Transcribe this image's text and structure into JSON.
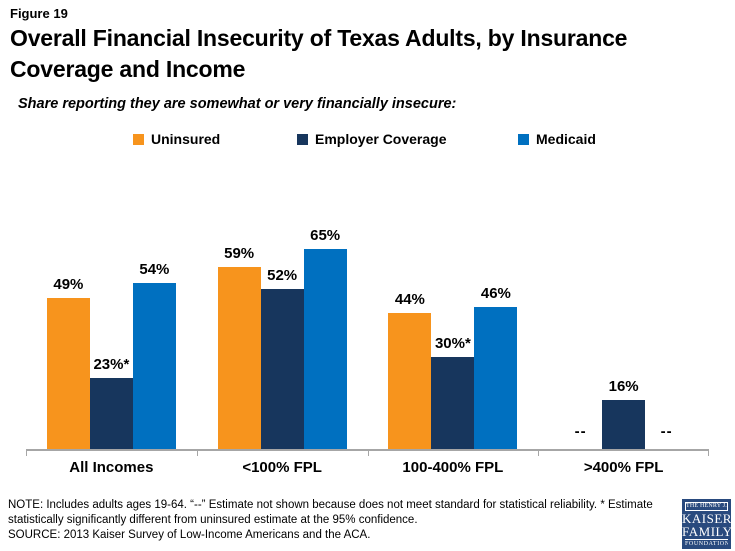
{
  "header": {
    "figure_label": "Figure 19",
    "title_lines": [
      "Overall Financial Insecurity of Texas Adults, by Insurance",
      "Coverage and Income"
    ],
    "subtitle": "Share reporting they are somewhat or very financially insecure:"
  },
  "chart_data": {
    "type": "bar",
    "title": "Overall Financial Insecurity of Texas Adults, by Insurance Coverage and Income",
    "subtitle": "Share reporting they are somewhat or very financially insecure:",
    "categories": [
      "All Incomes",
      "<100% FPL",
      "100-400% FPL",
      ">400% FPL"
    ],
    "series": [
      {
        "name": "Uninsured",
        "color": "#F7941D",
        "values": [
          49,
          59,
          44,
          null
        ],
        "labels": [
          "49%",
          "59%",
          "44%",
          "--"
        ]
      },
      {
        "name": "Employer Coverage",
        "color": "#17365D",
        "values": [
          23,
          52,
          30,
          16
        ],
        "labels": [
          "23%*",
          "52%",
          "30%*",
          "16%"
        ]
      },
      {
        "name": "Medicaid",
        "color": "#0070C0",
        "values": [
          54,
          65,
          46,
          null
        ],
        "labels": [
          "54%",
          "65%",
          "46%",
          "--"
        ]
      }
    ],
    "ylim": [
      0,
      70
    ],
    "grid": false,
    "legend_position": "top",
    "value_labels": true,
    "missing_marker": "--",
    "axis_color": "#A6A6A6"
  },
  "footer": {
    "note_lines": [
      "NOTE: Includes adults ages 19-64. “--” Estimate not shown because does not meet standard for statistical reliability. * Estimate",
      "statistically significantly different from uninsured estimate at the 95% confidence."
    ],
    "source": "SOURCE: 2013 Kaiser Survey of Low-Income Americans and the ACA."
  },
  "logo": {
    "line1": "THE HENRY J.",
    "line2": "KAISER",
    "line3": "FAMILY",
    "line4": "FOUNDATION",
    "bg_color": "#294A7E"
  }
}
